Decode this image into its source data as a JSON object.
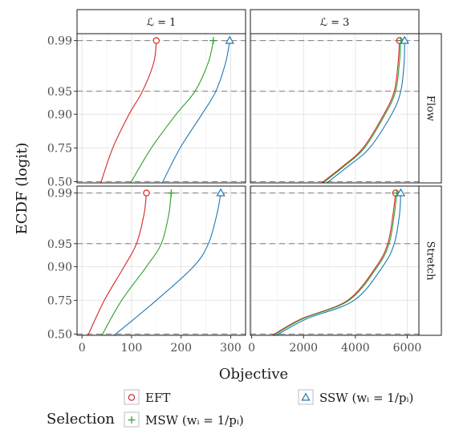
{
  "chart_data": {
    "type": "line",
    "title": "",
    "xlabel": "Objective",
    "ylabel": "ECDF (logit)",
    "y_scale": "logit",
    "y_ticks": [
      "0.50",
      "0.75",
      "0.90",
      "0.95",
      "0.99"
    ],
    "y_dashed_reference": [
      0.5,
      0.95,
      0.99
    ],
    "grid": true,
    "facet_columns": [
      "ℒ = 1",
      "ℒ = 3"
    ],
    "facet_rows": [
      "Flow",
      "Stretch"
    ],
    "x_ranges": {
      "ℒ = 1": {
        "xlim": [
          -10,
          330
        ],
        "ticks": [
          "0",
          "100",
          "200",
          "300"
        ],
        "tick_values": [
          0,
          100,
          200,
          300
        ]
      },
      "ℒ = 3": {
        "xlim": [
          -50,
          6450
        ],
        "ticks": [
          "0",
          "2000",
          "4000",
          "6000"
        ],
        "tick_values": [
          0,
          2000,
          4000,
          6000
        ]
      }
    },
    "ylim": [
      0.49,
      0.992
    ],
    "legend": {
      "title": "Selection",
      "position": "bottom",
      "entries": [
        {
          "label": "EFT",
          "color": "#d62728",
          "marker": "circle"
        },
        {
          "label": "MSW (wᵢ = 1/pᵢ)",
          "color": "#2ca02c",
          "marker": "plus"
        },
        {
          "label": "SSW (wᵢ = 1/pᵢ)",
          "color": "#1f77b4",
          "marker": "triangle"
        }
      ]
    },
    "panels": [
      {
        "column": "ℒ = 1",
        "row": "Flow",
        "series": [
          {
            "name": "EFT",
            "color": "#d62728",
            "x": [
              38,
              62,
              95,
              122,
              145,
              150
            ],
            "y": [
              0.49,
              0.75,
              0.9,
              0.95,
              0.98,
              0.99
            ]
          },
          {
            "name": "MSW (wᵢ = 1/pᵢ)",
            "color": "#2ca02c",
            "x": [
              98,
              140,
              190,
              228,
              255,
              265
            ],
            "y": [
              0.49,
              0.75,
              0.9,
              0.95,
              0.98,
              0.99
            ]
          },
          {
            "name": "SSW (wᵢ = 1/pᵢ)",
            "color": "#1f77b4",
            "x": [
              162,
              198,
              242,
              270,
              290,
              298
            ],
            "y": [
              0.49,
              0.75,
              0.9,
              0.95,
              0.98,
              0.99
            ]
          }
        ]
      },
      {
        "column": "ℒ = 3",
        "row": "Flow",
        "series": [
          {
            "name": "EFT",
            "color": "#d62728",
            "x": [
              2700,
              3500,
              4300,
              5100,
              5500,
              5650,
              5700
            ],
            "y": [
              0.49,
              0.62,
              0.75,
              0.9,
              0.95,
              0.98,
              0.99
            ]
          },
          {
            "name": "MSW (wᵢ = 1/pᵢ)",
            "color": "#2ca02c",
            "x": [
              2750,
              3550,
              4350,
              5150,
              5550,
              5700,
              5750
            ],
            "y": [
              0.49,
              0.62,
              0.75,
              0.9,
              0.95,
              0.98,
              0.99
            ]
          },
          {
            "name": "SSW (wᵢ = 1/pᵢ)",
            "color": "#1f77b4",
            "x": [
              2900,
              3700,
              4550,
              5400,
              5750,
              5880,
              5900
            ],
            "y": [
              0.49,
              0.62,
              0.75,
              0.9,
              0.95,
              0.98,
              0.99
            ]
          }
        ]
      },
      {
        "column": "ℒ = 1",
        "row": "Stretch",
        "series": [
          {
            "name": "EFT",
            "color": "#d62728",
            "x": [
              12,
              45,
              85,
              110,
              125,
              130
            ],
            "y": [
              0.49,
              0.75,
              0.9,
              0.95,
              0.98,
              0.99
            ]
          },
          {
            "name": "MSW (wᵢ = 1/pᵢ)",
            "color": "#2ca02c",
            "x": [
              40,
              80,
              130,
              160,
              175,
              180
            ],
            "y": [
              0.49,
              0.75,
              0.9,
              0.95,
              0.98,
              0.99
            ]
          },
          {
            "name": "SSW (wᵢ = 1/pᵢ)",
            "color": "#1f77b4",
            "x": [
              65,
              150,
              225,
              255,
              272,
              280
            ],
            "y": [
              0.49,
              0.75,
              0.9,
              0.95,
              0.98,
              0.99
            ]
          }
        ]
      },
      {
        "column": "ℒ = 3",
        "row": "Stretch",
        "series": [
          {
            "name": "EFT",
            "color": "#d62728",
            "x": [
              800,
              1900,
              3700,
              4800,
              5250,
              5450,
              5550
            ],
            "y": [
              0.49,
              0.62,
              0.75,
              0.9,
              0.95,
              0.98,
              0.99
            ]
          },
          {
            "name": "MSW (wᵢ = 1/pᵢ)",
            "color": "#2ca02c",
            "x": [
              850,
              1950,
              3750,
              4850,
              5300,
              5500,
              5600
            ],
            "y": [
              0.49,
              0.62,
              0.75,
              0.9,
              0.95,
              0.98,
              0.99
            ]
          },
          {
            "name": "SSW (wᵢ = 1/pᵢ)",
            "color": "#1f77b4",
            "x": [
              950,
              2100,
              3950,
              5050,
              5500,
              5700,
              5750
            ],
            "y": [
              0.49,
              0.62,
              0.75,
              0.9,
              0.95,
              0.98,
              0.99
            ]
          }
        ]
      }
    ]
  }
}
